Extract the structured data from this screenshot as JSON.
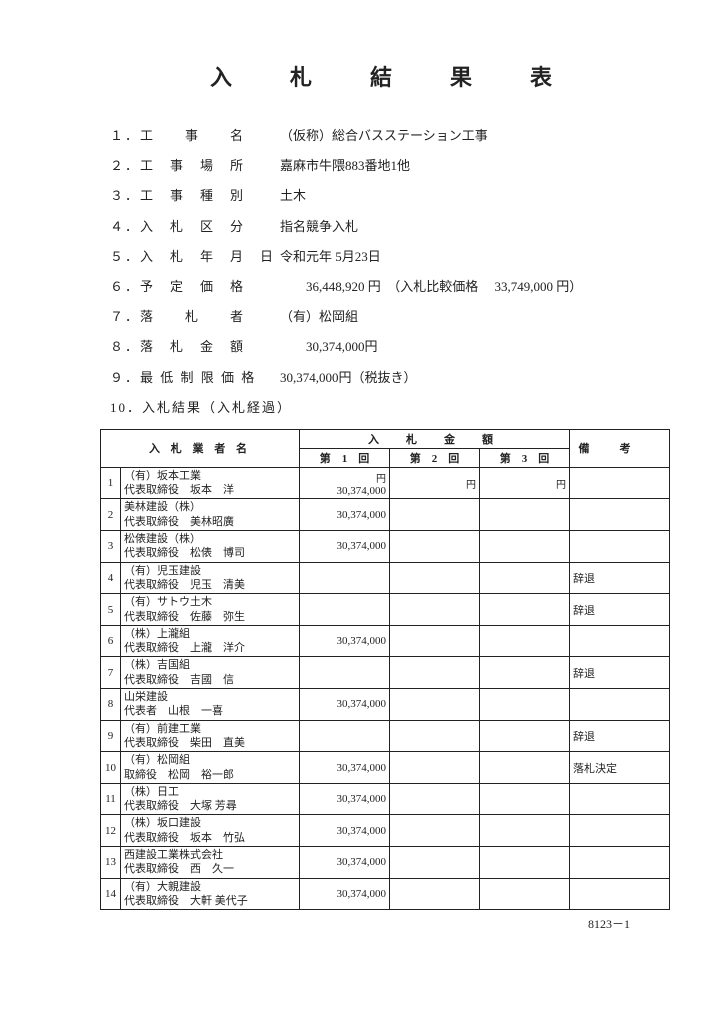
{
  "title": "入　札　結　果　表",
  "fields": [
    {
      "num": "１．",
      "label": "工　　事　　名",
      "value": "（仮称）総合バスステーション工事"
    },
    {
      "num": "２．",
      "label": "工　事　場　所",
      "value": "嘉麻市牛隈883番地1他"
    },
    {
      "num": "３．",
      "label": "工　事　種　別",
      "value": "土木"
    },
    {
      "num": "４．",
      "label": "入　札　区　分",
      "value": "指名競争入札"
    },
    {
      "num": "５．",
      "label": "入　札　年　月　日",
      "value": "令和元年 5月23日"
    },
    {
      "num": "６．",
      "label": "予　定　価　格",
      "value": "　　36,448,920 円　（入札比較価格　 33,749,000 円）"
    },
    {
      "num": "７．",
      "label": "落　　札　　者",
      "value": "（有）松岡組"
    },
    {
      "num": "８．",
      "label": "落　札　金　額",
      "value": "　　30,374,000円"
    },
    {
      "num": "９．",
      "label": "最 低 制 限 価 格",
      "value": "30,374,000円（税抜き）"
    },
    {
      "num": "10．",
      "label": "入札結果（入札経過）",
      "value": ""
    }
  ],
  "table": {
    "header_company": "入 札 業 者 名",
    "header_amount": "入　札　金　額",
    "header_remarks": "備考",
    "round_label_template": "第　N　回",
    "rounds": [
      "第　1　回",
      "第　2　回",
      "第　3　回"
    ],
    "yen_unit": "円",
    "rows": [
      {
        "n": "1",
        "company": "（有）坂本工業\n代表取締役　坂本　洋",
        "a1": "30,374,000",
        "a2": "",
        "a3": "",
        "rem": ""
      },
      {
        "n": "2",
        "company": "美林建設（株）\n代表取締役　美林昭廣",
        "a1": "30,374,000",
        "a2": "",
        "a3": "",
        "rem": ""
      },
      {
        "n": "3",
        "company": "松俵建設（株）\n代表取締役　松俵　博司",
        "a1": "30,374,000",
        "a2": "",
        "a3": "",
        "rem": ""
      },
      {
        "n": "4",
        "company": "（有）児玉建設\n代表取締役　児玉　清美",
        "a1": "",
        "a2": "",
        "a3": "",
        "rem": "辞退"
      },
      {
        "n": "5",
        "company": "（有）サトウ土木\n代表取締役　佐藤　弥生",
        "a1": "",
        "a2": "",
        "a3": "",
        "rem": "辞退"
      },
      {
        "n": "6",
        "company": "（株）上瀧組\n代表取締役　上瀧　洋介",
        "a1": "30,374,000",
        "a2": "",
        "a3": "",
        "rem": ""
      },
      {
        "n": "7",
        "company": "（株）吉国組\n代表取締役　吉國　信",
        "a1": "",
        "a2": "",
        "a3": "",
        "rem": "辞退"
      },
      {
        "n": "8",
        "company": "山栄建設\n代表者　山根　一喜",
        "a1": "30,374,000",
        "a2": "",
        "a3": "",
        "rem": ""
      },
      {
        "n": "9",
        "company": "（有）前建工業\n代表取締役　柴田　直美",
        "a1": "",
        "a2": "",
        "a3": "",
        "rem": "辞退"
      },
      {
        "n": "10",
        "company": "（有）松岡組\n取締役　松岡　裕一郎",
        "a1": "30,374,000",
        "a2": "",
        "a3": "",
        "rem": "落札決定"
      },
      {
        "n": "11",
        "company": "（株）日工\n代表取締役　大塚 芳尋",
        "a1": "30,374,000",
        "a2": "",
        "a3": "",
        "rem": ""
      },
      {
        "n": "12",
        "company": "（株）坂口建設\n代表取締役　坂本　竹弘",
        "a1": "30,374,000",
        "a2": "",
        "a3": "",
        "rem": ""
      },
      {
        "n": "13",
        "company": "西建設工業株式会社\n代表取締役　西　久一",
        "a1": "30,374,000",
        "a2": "",
        "a3": "",
        "rem": ""
      },
      {
        "n": "14",
        "company": "（有）大親建設\n代表取締役　大軒 美代子",
        "a1": "30,374,000",
        "a2": "",
        "a3": "",
        "rem": ""
      }
    ]
  },
  "footer": "8123－1"
}
